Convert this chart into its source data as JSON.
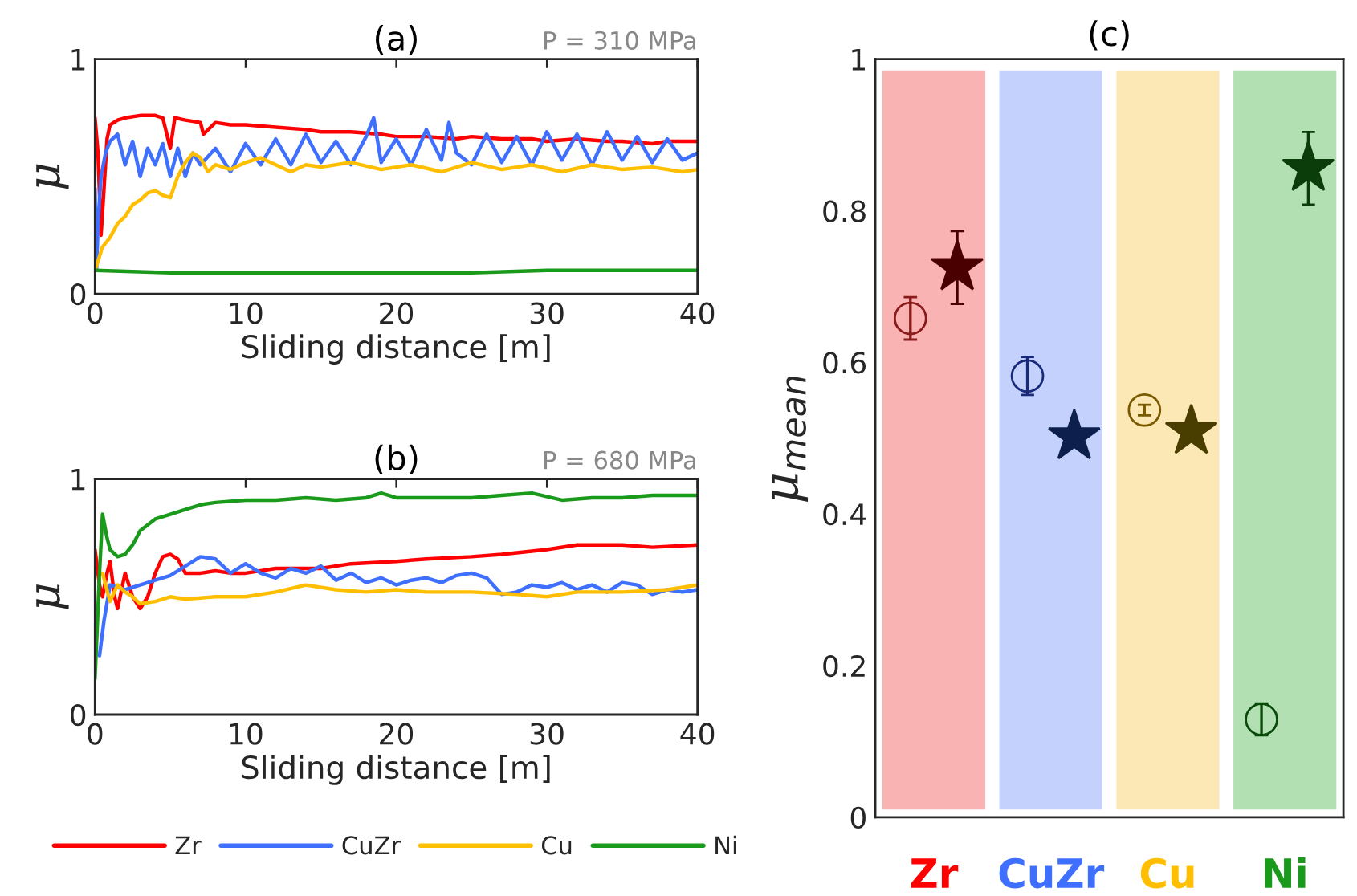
{
  "chart_data": [
    {
      "type": "line",
      "title": "(a)",
      "annotations": [
        "P = 310 MPa"
      ],
      "xlabel": "Sliding distance [m]",
      "ylabel": "μ",
      "xlim": [
        0,
        40
      ],
      "ylim": [
        0,
        1
      ],
      "xticks": [
        0,
        10,
        20,
        30,
        40
      ],
      "yticks": [
        0,
        1
      ],
      "grid": false,
      "legend": false,
      "line_style": "solid",
      "marker": "none",
      "series": [
        {
          "color": "#ff0000",
          "x": [
            0,
            0.2,
            0.4,
            0.6,
            0.8,
            1,
            1.5,
            2,
            3,
            4,
            4.5,
            5,
            5.3,
            6,
            7,
            7.2,
            8,
            9,
            10,
            12,
            14,
            15,
            17,
            19,
            20,
            22,
            24,
            25,
            27,
            29,
            30,
            32,
            34,
            35,
            37,
            38,
            40
          ],
          "values": [
            0.75,
            0.6,
            0.25,
            0.45,
            0.66,
            0.72,
            0.74,
            0.75,
            0.76,
            0.76,
            0.75,
            0.62,
            0.75,
            0.74,
            0.73,
            0.68,
            0.73,
            0.72,
            0.72,
            0.71,
            0.7,
            0.69,
            0.69,
            0.68,
            0.67,
            0.67,
            0.66,
            0.67,
            0.66,
            0.66,
            0.65,
            0.66,
            0.65,
            0.65,
            0.64,
            0.65,
            0.65
          ]
        },
        {
          "color": "#3f6fff",
          "x": [
            0,
            0.1,
            0.2,
            0.4,
            0.7,
            1,
            1.5,
            2,
            2.5,
            3,
            3.5,
            4,
            4.5,
            5,
            5.5,
            6,
            6.5,
            7,
            8,
            9,
            10,
            11,
            12,
            13,
            14,
            15,
            16,
            17,
            18,
            18.5,
            19,
            20,
            21,
            22,
            23,
            23.5,
            24,
            25,
            26,
            27,
            28,
            29,
            30,
            31,
            32,
            33,
            34,
            35,
            36,
            37,
            38,
            39,
            40
          ],
          "values": [
            0.45,
            0.1,
            0.3,
            0.5,
            0.6,
            0.65,
            0.68,
            0.55,
            0.65,
            0.5,
            0.62,
            0.55,
            0.64,
            0.5,
            0.62,
            0.5,
            0.6,
            0.55,
            0.62,
            0.52,
            0.64,
            0.55,
            0.66,
            0.55,
            0.68,
            0.56,
            0.65,
            0.55,
            0.67,
            0.75,
            0.56,
            0.66,
            0.55,
            0.7,
            0.57,
            0.73,
            0.6,
            0.55,
            0.68,
            0.56,
            0.67,
            0.55,
            0.69,
            0.57,
            0.68,
            0.55,
            0.69,
            0.57,
            0.67,
            0.56,
            0.66,
            0.57,
            0.6
          ]
        },
        {
          "color": "#ffbf00",
          "x": [
            0,
            0.5,
            1,
            1.5,
            2,
            2.5,
            3,
            3.5,
            4,
            4.5,
            5,
            5.5,
            6,
            6.5,
            7,
            7.5,
            8,
            9,
            10,
            11,
            12,
            13,
            14,
            15,
            17,
            19,
            21,
            23,
            25,
            27,
            29,
            31,
            33,
            35,
            37,
            39,
            40
          ],
          "values": [
            0.1,
            0.2,
            0.24,
            0.3,
            0.33,
            0.38,
            0.4,
            0.43,
            0.44,
            0.42,
            0.41,
            0.5,
            0.56,
            0.6,
            0.58,
            0.52,
            0.55,
            0.53,
            0.56,
            0.58,
            0.55,
            0.52,
            0.55,
            0.54,
            0.56,
            0.53,
            0.55,
            0.52,
            0.56,
            0.53,
            0.55,
            0.52,
            0.55,
            0.53,
            0.54,
            0.52,
            0.53
          ]
        },
        {
          "color": "#1a9a1a",
          "x": [
            0,
            5,
            10,
            15,
            20,
            25,
            30,
            35,
            40
          ],
          "values": [
            0.1,
            0.09,
            0.09,
            0.09,
            0.09,
            0.09,
            0.1,
            0.1,
            0.1
          ]
        }
      ]
    },
    {
      "type": "line",
      "title": "(b)",
      "annotations": [
        "P = 680 MPa"
      ],
      "xlabel": "Sliding distance [m]",
      "ylabel": "μ",
      "xlim": [
        0,
        40
      ],
      "ylim": [
        0,
        1
      ],
      "xticks": [
        0,
        10,
        20,
        30,
        40
      ],
      "yticks": [
        0,
        1
      ],
      "grid": false,
      "legend": "bottom",
      "line_style": "solid",
      "marker": "none",
      "series": [
        {
          "name": "Zr",
          "color": "#ff0000",
          "x": [
            0,
            0.3,
            0.5,
            0.8,
            1,
            1.3,
            1.5,
            2,
            2.5,
            3,
            3.5,
            4,
            4.5,
            5,
            5.5,
            6,
            7,
            8,
            9,
            10,
            12,
            15,
            17,
            20,
            22,
            25,
            27,
            30,
            32,
            35,
            37,
            40
          ],
          "values": [
            0.7,
            0.55,
            0.5,
            0.6,
            0.65,
            0.5,
            0.45,
            0.6,
            0.5,
            0.45,
            0.5,
            0.6,
            0.67,
            0.68,
            0.66,
            0.6,
            0.6,
            0.61,
            0.6,
            0.6,
            0.62,
            0.62,
            0.64,
            0.65,
            0.66,
            0.67,
            0.68,
            0.7,
            0.72,
            0.72,
            0.71,
            0.72
          ]
        },
        {
          "name": "CuZr",
          "color": "#3f6fff",
          "x": [
            0.3,
            0.6,
            1,
            2,
            3,
            4,
            5,
            6,
            7,
            8,
            9,
            10,
            11,
            12,
            13,
            14,
            15,
            16,
            17,
            18,
            19,
            20,
            21,
            22,
            23,
            24,
            25,
            26,
            27,
            28,
            29,
            30,
            31,
            32,
            33,
            34,
            35,
            36,
            37,
            38,
            39,
            40
          ],
          "values": [
            0.25,
            0.4,
            0.55,
            0.53,
            0.55,
            0.57,
            0.59,
            0.63,
            0.67,
            0.66,
            0.6,
            0.64,
            0.6,
            0.58,
            0.62,
            0.6,
            0.63,
            0.57,
            0.6,
            0.56,
            0.58,
            0.55,
            0.57,
            0.58,
            0.56,
            0.59,
            0.6,
            0.58,
            0.51,
            0.52,
            0.55,
            0.54,
            0.56,
            0.53,
            0.55,
            0.52,
            0.56,
            0.55,
            0.51,
            0.53,
            0.52,
            0.53
          ]
        },
        {
          "name": "Cu",
          "color": "#ffbf00",
          "x": [
            0.5,
            1,
            1.5,
            2,
            2.5,
            3,
            4,
            5,
            6,
            8,
            10,
            12,
            14,
            16,
            18,
            20,
            22,
            25,
            28,
            30,
            32,
            35,
            38,
            40
          ],
          "values": [
            0.6,
            0.48,
            0.55,
            0.52,
            0.5,
            0.47,
            0.48,
            0.5,
            0.49,
            0.5,
            0.5,
            0.52,
            0.55,
            0.53,
            0.52,
            0.53,
            0.52,
            0.52,
            0.51,
            0.5,
            0.52,
            0.52,
            0.53,
            0.55
          ]
        },
        {
          "name": "Ni",
          "color": "#1a9a1a",
          "x": [
            0,
            0.3,
            0.5,
            0.8,
            1,
            1.5,
            2,
            2.5,
            3,
            4,
            5,
            6,
            7,
            8,
            10,
            12,
            14,
            16,
            18,
            19,
            20,
            22,
            25,
            27,
            29,
            31,
            33,
            35,
            37,
            40
          ],
          "values": [
            0.15,
            0.6,
            0.85,
            0.75,
            0.7,
            0.67,
            0.68,
            0.72,
            0.78,
            0.83,
            0.85,
            0.87,
            0.89,
            0.9,
            0.91,
            0.91,
            0.92,
            0.91,
            0.92,
            0.94,
            0.92,
            0.92,
            0.92,
            0.93,
            0.94,
            0.91,
            0.92,
            0.92,
            0.93,
            0.93
          ]
        }
      ]
    },
    {
      "type": "bar",
      "title": "(c)",
      "ylabel": "μ$_{mean}$",
      "categories": [
        "Zr",
        "CuZr",
        "Cu",
        "Ni"
      ],
      "ylim": [
        0,
        1
      ],
      "yticks": [
        0,
        0.2,
        0.4,
        0.6,
        0.8,
        1
      ],
      "grid": false,
      "series": [
        {
          "type": "bar",
          "colors": [
            "#f9b3b3",
            "#c3d1fc",
            "#fce8b5",
            "#b3e0b3"
          ],
          "base": [
            0.01,
            0.01,
            0.01,
            0.01
          ],
          "values": [
            0.975,
            0.975,
            0.975,
            0.975
          ]
        },
        {
          "type": "scatter",
          "marker": "circle",
          "colors": [
            "#8b1a1a",
            "#1a2a7a",
            "#7a5a00",
            "#0a4a0a"
          ],
          "values": [
            0.658,
            0.582,
            0.537,
            0.129
          ],
          "errors": [
            0.028,
            0.025,
            0.007,
            0.021
          ]
        },
        {
          "type": "scatter",
          "marker": "star",
          "colors": [
            "#4a0000",
            "#0d1f4d",
            "#4a3d00",
            "#0a3d0a"
          ],
          "values": [
            0.725,
            0.502,
            0.509,
            0.856
          ],
          "errors": [
            0.048,
            null,
            null,
            0.048
          ]
        }
      ]
    }
  ]
}
